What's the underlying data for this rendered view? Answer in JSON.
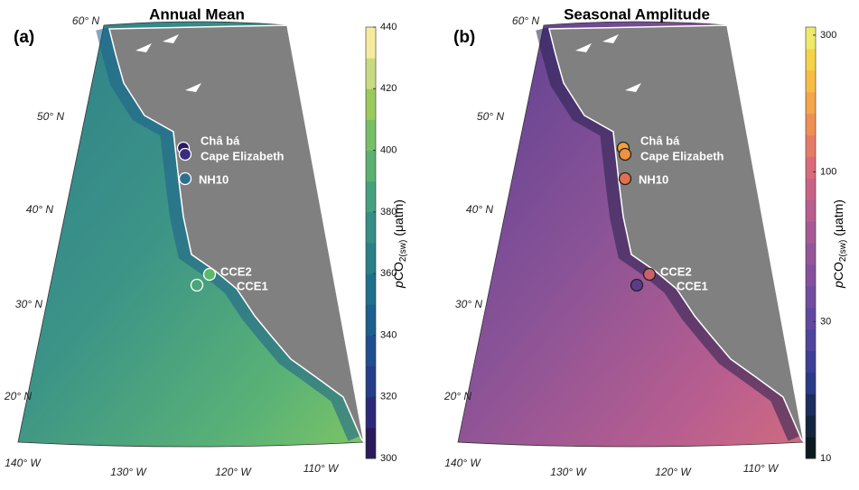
{
  "panels": [
    {
      "label": "(a)",
      "title": "Annual Mean",
      "lat_labels": [
        "60° N",
        "50° N",
        "40° N",
        "30° N",
        "20° N"
      ],
      "lon_labels": [
        "140° W",
        "130° W",
        "120° W",
        "110° W"
      ],
      "stations": [
        {
          "name": "Châ bá",
          "color": "#2b1a63"
        },
        {
          "name": "Cape Elizabeth",
          "color": "#3a2d7a"
        },
        {
          "name": "NH10",
          "color": "#2f6f8e"
        },
        {
          "name": "CCE2",
          "color": "#5cb86a"
        },
        {
          "name": "CCE1",
          "color": "#4aa57a"
        }
      ],
      "colorbar": {
        "log": false,
        "ylim": [
          300,
          440
        ],
        "ticks": [
          300,
          320,
          340,
          360,
          380,
          400,
          420,
          440
        ],
        "colors": [
          "#2a1a5a",
          "#2c2a78",
          "#263d8a",
          "#1f4f8e",
          "#1d5f8d",
          "#20708b",
          "#2a7f88",
          "#368e84",
          "#45a07e",
          "#5bb072",
          "#76bf66",
          "#9ac95c",
          "#c8db80",
          "#f6ea9e"
        ],
        "label": {
          "italic": "p",
          "main": "CO",
          "sub": "2(sw)",
          "unit": " (μatm)"
        }
      }
    },
    {
      "label": "(b)",
      "title": "Seasonal Amplitude",
      "lat_labels": [
        "60° N",
        "50° N",
        "40° N",
        "30° N",
        "20° N"
      ],
      "lon_labels": [
        "140° W",
        "130° W",
        "120° W",
        "110° W"
      ],
      "stations": [
        {
          "name": "Châ bá",
          "color": "#f2a03a"
        },
        {
          "name": "Cape Elizabeth",
          "color": "#ee9240"
        },
        {
          "name": "NH10",
          "color": "#e0704f"
        },
        {
          "name": "CCE2",
          "color": "#c9606a"
        },
        {
          "name": "CCE1",
          "color": "#5b3c8a"
        }
      ],
      "colorbar": {
        "log": true,
        "ylim": [
          10,
          320
        ],
        "ticks": [
          10,
          30,
          100,
          300
        ],
        "colors": [
          "#0c1a1f",
          "#14253e",
          "#1c2d5e",
          "#2b3a86",
          "#3d3f97",
          "#4f459d",
          "#61489f",
          "#714d9f",
          "#84509d",
          "#95559a",
          "#a65995",
          "#b95e8f",
          "#c96386",
          "#d86b79",
          "#e57c68",
          "#ee8f55",
          "#f3a64a",
          "#f6bc45",
          "#f4d24a",
          "#eeea6a"
        ],
        "label": {
          "italic": "p",
          "main": "CO",
          "sub": "2(sw)",
          "unit": " (μatm)"
        }
      }
    }
  ]
}
